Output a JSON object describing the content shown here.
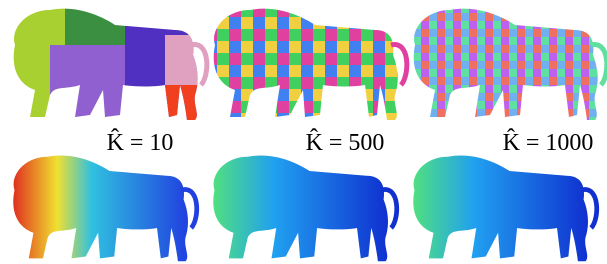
{
  "labels": [
    "K̂ = 10",
    "K̂ = 500",
    "K̂ = 1000"
  ]
}
